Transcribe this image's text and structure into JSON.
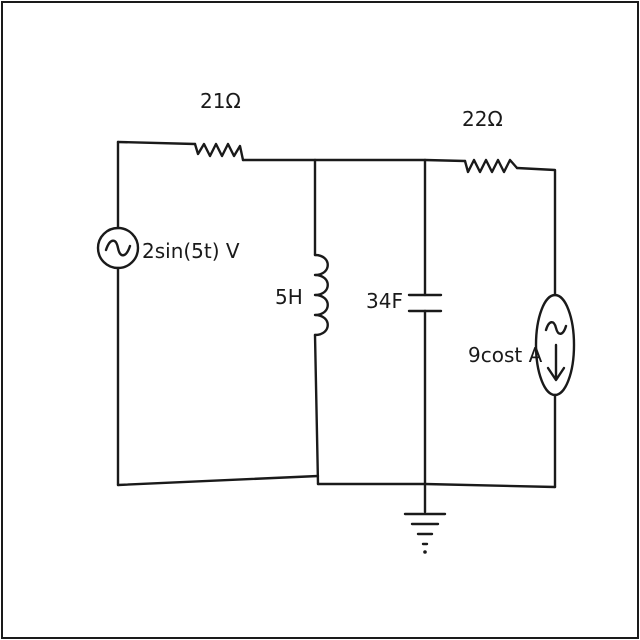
{
  "components": {
    "r1": {
      "label": "21Ω"
    },
    "r2": {
      "label": "22Ω"
    },
    "voltage_source": {
      "label": "2sin(5t) V"
    },
    "inductor": {
      "label": "5H"
    },
    "capacitor": {
      "label": "34F"
    },
    "current_source": {
      "label": "9cost A"
    }
  },
  "colors": {
    "ink": "#1a1a1a",
    "background": "#ffffff"
  }
}
